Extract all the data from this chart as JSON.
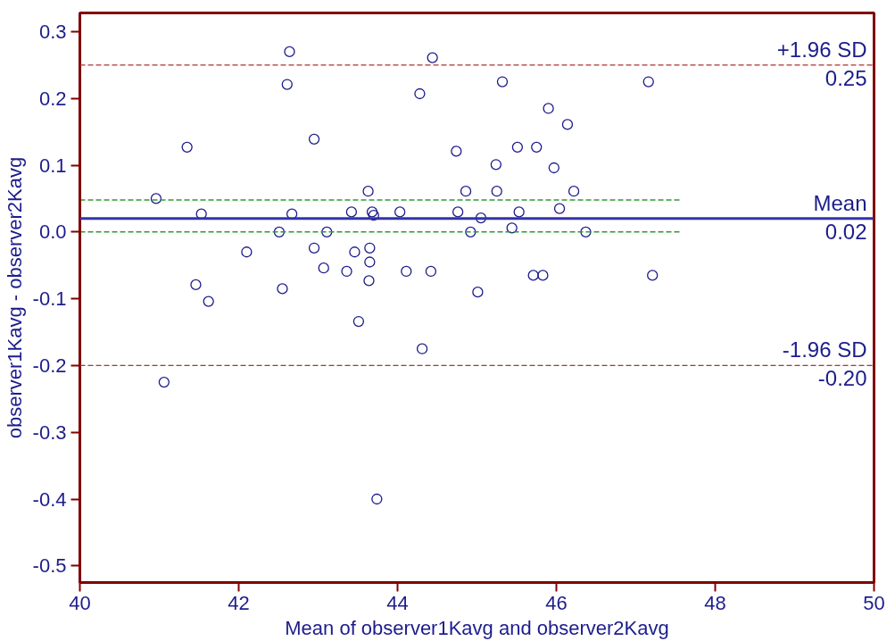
{
  "chart_data": {
    "type": "scatter",
    "xlabel": "Mean of observer1Kavg and observer2Kavg",
    "ylabel": "observer1Kavg - observer2Kavg",
    "xlim": [
      40,
      50
    ],
    "ylim": [
      -0.525,
      0.328
    ],
    "xticks": [
      40,
      42,
      44,
      46,
      48,
      50
    ],
    "yticks": [
      {
        "value": 0.3,
        "label": "0.3"
      },
      {
        "value": 0.2,
        "label": "0.2"
      },
      {
        "value": 0.1,
        "label": "0.1"
      },
      {
        "value": 0.0,
        "label": "0.0"
      },
      {
        "value": -0.1,
        "label": "-0.1"
      },
      {
        "value": -0.2,
        "label": "-0.2"
      },
      {
        "value": -0.3,
        "label": "-0.3"
      },
      {
        "value": -0.4,
        "label": "-0.4"
      },
      {
        "value": -0.5,
        "label": "-0.5"
      }
    ],
    "grid": false,
    "series": [
      {
        "marker": "circle",
        "color": "#1c1c8c",
        "x": [
          40.96,
          41.06,
          41.35,
          41.46,
          41.53,
          41.62,
          42.1,
          42.51,
          42.55,
          42.61,
          42.64,
          42.67,
          42.95,
          42.95,
          43.07,
          43.11,
          43.36,
          43.42,
          43.46,
          43.51,
          43.63,
          43.65,
          43.65,
          43.64,
          43.68,
          43.7,
          43.74,
          44.03,
          44.11,
          44.28,
          44.31,
          44.42,
          44.44,
          44.74,
          44.76,
          44.86,
          44.92,
          45.01,
          45.05,
          45.24,
          45.25,
          45.32,
          45.44,
          45.51,
          45.53,
          45.71,
          45.75,
          45.83,
          45.9,
          45.97,
          46.04,
          46.14,
          46.22,
          46.37,
          47.16,
          47.21
        ],
        "values": [
          0.05,
          -0.225,
          0.127,
          -0.079,
          0.027,
          -0.104,
          -0.03,
          0.0,
          -0.085,
          0.221,
          0.27,
          0.027,
          0.139,
          -0.024,
          -0.054,
          0.0,
          -0.059,
          0.03,
          -0.03,
          -0.134,
          0.061,
          -0.024,
          -0.045,
          -0.073,
          0.03,
          0.025,
          -0.4,
          0.03,
          -0.059,
          0.207,
          -0.175,
          -0.059,
          0.261,
          0.121,
          0.03,
          0.061,
          0.0,
          -0.09,
          0.021,
          0.101,
          0.061,
          0.225,
          0.006,
          0.127,
          0.03,
          -0.065,
          0.127,
          -0.065,
          0.185,
          0.096,
          0.035,
          0.161,
          0.061,
          0.0,
          0.225,
          -0.065
        ]
      },
      {
        "type": "line",
        "marker": "none",
        "color": "#339933",
        "line_style": "dashed",
        "x": [
          40,
          47.55
        ],
        "values": [
          0.048,
          0.048
        ]
      },
      {
        "type": "line",
        "marker": "none",
        "color": "#339933",
        "line_style": "dashed",
        "x": [
          40,
          47.55
        ],
        "values": [
          0.0,
          0.0
        ]
      }
    ],
    "ref_lines": [
      {
        "axis": "y",
        "value": 0.25,
        "label": "+1.96 SD\n0.25",
        "color": "#aa3333",
        "line_style": "dashed"
      },
      {
        "axis": "y",
        "value": 0.02,
        "label": "Mean\n0.02",
        "color": "#3333aa",
        "line_style": "solid"
      },
      {
        "axis": "y",
        "value": -0.2,
        "label": "-1.96 SD\n-0.20",
        "color": "#aa3333",
        "line_style": "dashed"
      }
    ]
  }
}
